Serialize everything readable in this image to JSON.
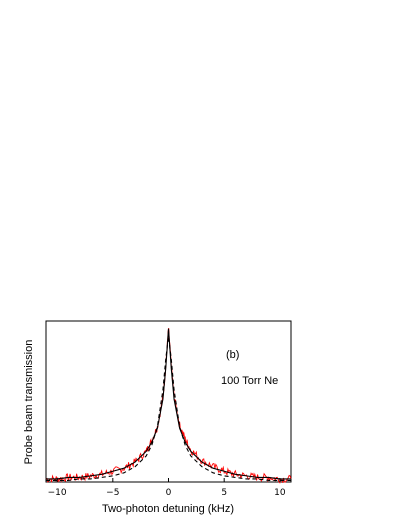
{
  "chart_data": {
    "type": "line",
    "xlabel": "Two-photon detuning (kHz)",
    "ylabel": "Probe beam transmission",
    "xlim": [
      -11,
      11
    ],
    "ylim": [
      0,
      1.05
    ],
    "xticks": [
      -10,
      -5,
      0,
      5,
      10
    ],
    "xtick_labels": [
      "−10",
      "−5",
      "0",
      "5",
      "10"
    ],
    "yticks_shown": false,
    "grid": false,
    "annotations": [
      "(b)",
      "100 Torr Ne"
    ],
    "series": [
      {
        "style": "noisy measured trace",
        "color": "#ff0000",
        "x": [
          -11,
          -10,
          -9,
          -8,
          -7,
          -6,
          -5,
          -4,
          -3,
          -2,
          -1.5,
          -1,
          -0.5,
          -0.25,
          0,
          0.25,
          0.5,
          1,
          1.5,
          2,
          3,
          4,
          5,
          6,
          7,
          8,
          9,
          10,
          11
        ],
        "y": [
          0.02,
          0.02,
          0.03,
          0.03,
          0.04,
          0.05,
          0.07,
          0.09,
          0.13,
          0.2,
          0.27,
          0.36,
          0.55,
          0.75,
          1.0,
          0.76,
          0.56,
          0.37,
          0.28,
          0.21,
          0.14,
          0.1,
          0.07,
          0.05,
          0.04,
          0.03,
          0.03,
          0.02,
          0.02
        ]
      },
      {
        "style": "solid fit",
        "color": "#000000",
        "x": [
          -11,
          -10,
          -9,
          -8,
          -7,
          -6,
          -5,
          -4,
          -3,
          -2,
          -1.5,
          -1,
          -0.5,
          -0.25,
          0,
          0.25,
          0.5,
          1,
          1.5,
          2,
          3,
          4,
          5,
          6,
          7,
          8,
          9,
          10,
          11
        ],
        "y": [
          0.02,
          0.02,
          0.03,
          0.03,
          0.04,
          0.05,
          0.07,
          0.09,
          0.13,
          0.2,
          0.26,
          0.35,
          0.54,
          0.74,
          1.0,
          0.74,
          0.54,
          0.35,
          0.26,
          0.2,
          0.13,
          0.09,
          0.07,
          0.05,
          0.04,
          0.03,
          0.03,
          0.02,
          0.02
        ]
      },
      {
        "style": "dashed fit",
        "color": "#000000",
        "x": [
          -11,
          -10,
          -9,
          -8,
          -7,
          -6,
          -5,
          -4,
          -3,
          -2,
          -1.5,
          -1,
          -0.5,
          -0.25,
          0,
          0.25,
          0.5,
          1,
          1.5,
          2,
          3,
          4,
          5,
          6,
          7,
          8,
          9,
          10,
          11
        ],
        "y": [
          0.01,
          0.01,
          0.01,
          0.02,
          0.02,
          0.03,
          0.04,
          0.06,
          0.1,
          0.17,
          0.24,
          0.36,
          0.6,
          0.8,
          0.95,
          0.8,
          0.6,
          0.36,
          0.24,
          0.17,
          0.1,
          0.06,
          0.04,
          0.03,
          0.02,
          0.02,
          0.01,
          0.01,
          0.01
        ]
      }
    ]
  }
}
